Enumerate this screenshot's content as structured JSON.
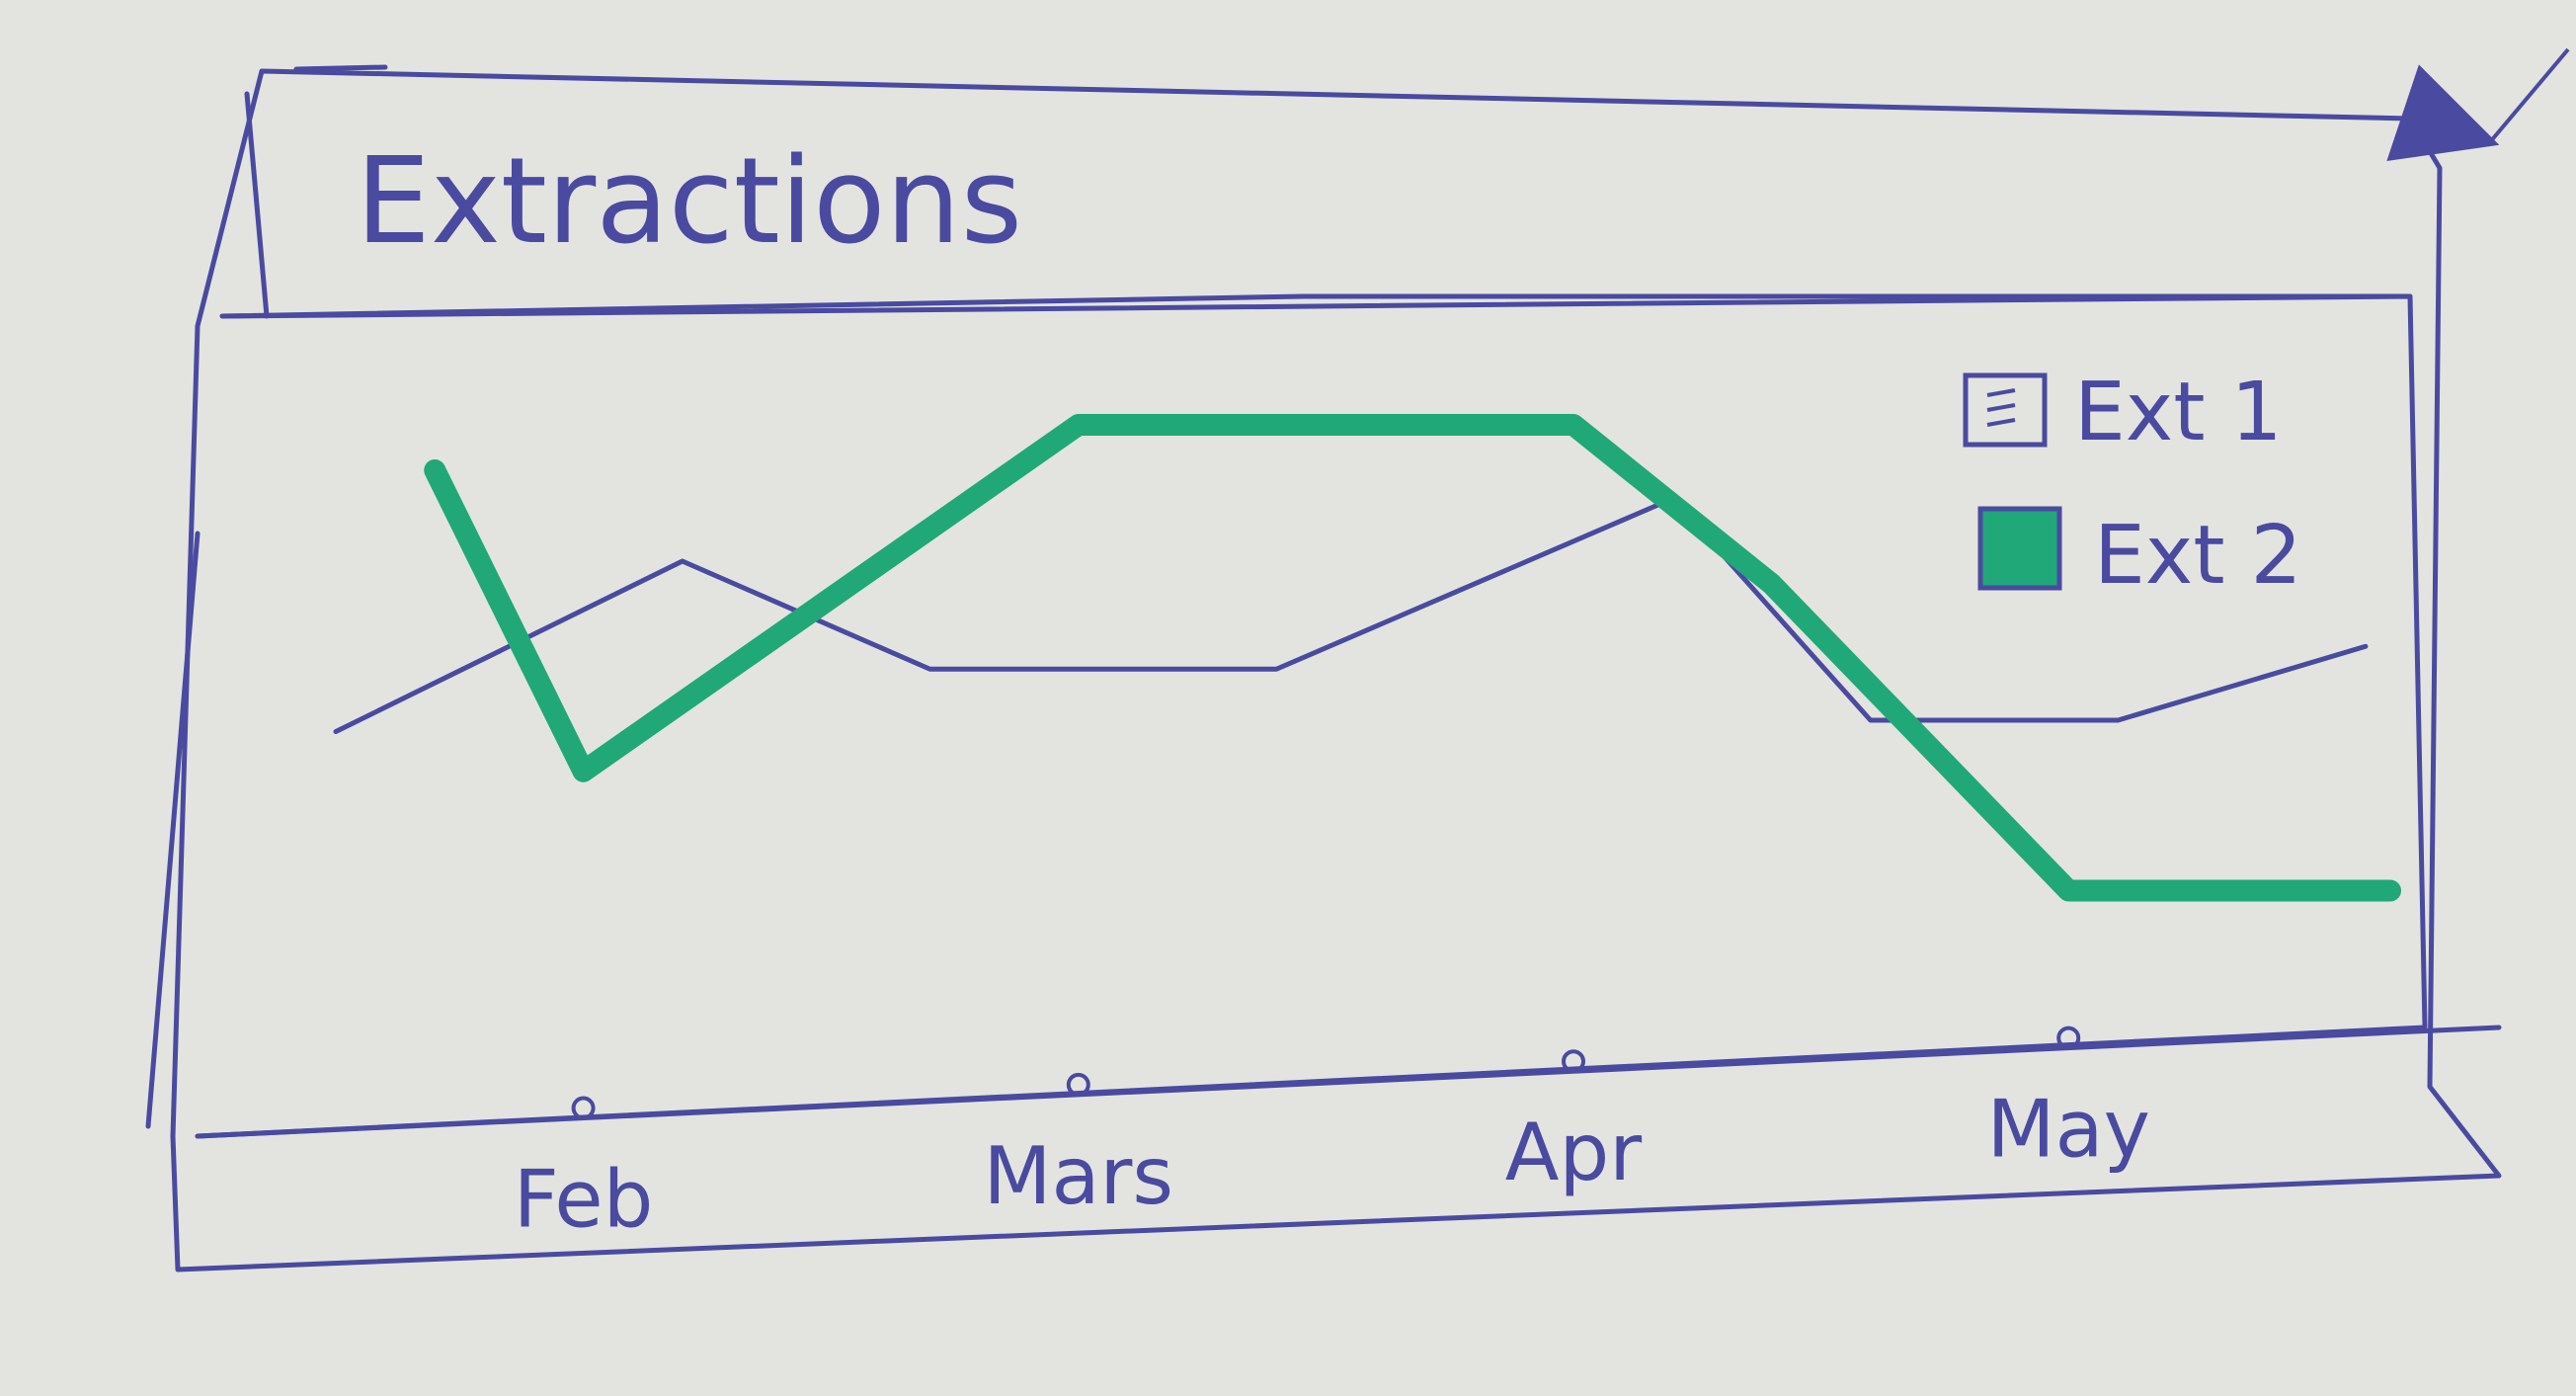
{
  "window": {
    "title": "Extractions"
  },
  "chart_data": {
    "type": "line",
    "title": "Extractions",
    "categories": [
      "Feb",
      "Mars",
      "Apr",
      "May"
    ],
    "x_range": [
      0.5,
      4.65
    ],
    "ylim": [
      0,
      10
    ],
    "grid": false,
    "legend_position": "top-right",
    "series": [
      {
        "name": "Ext 1",
        "color": "#4a4aa0",
        "points": [
          [
            0.5,
            4.6
          ],
          [
            1.2,
            7.6
          ],
          [
            1.7,
            5.7
          ],
          [
            2.4,
            5.7
          ],
          [
            3.2,
            8.7
          ],
          [
            3.6,
            4.8
          ],
          [
            4.1,
            4.8
          ],
          [
            4.6,
            6.1
          ]
        ]
      },
      {
        "name": "Ext 2",
        "color": "#20a878",
        "points": [
          [
            0.7,
            9.2
          ],
          [
            1.0,
            3.9
          ],
          [
            2.0,
            10.0
          ],
          [
            3.0,
            10.0
          ],
          [
            3.4,
            7.2
          ],
          [
            4.0,
            1.8
          ],
          [
            4.65,
            1.8
          ]
        ]
      }
    ]
  },
  "colors": {
    "ink": "#4a4aa0",
    "green": "#20a878",
    "paper": "#e3e4df"
  }
}
